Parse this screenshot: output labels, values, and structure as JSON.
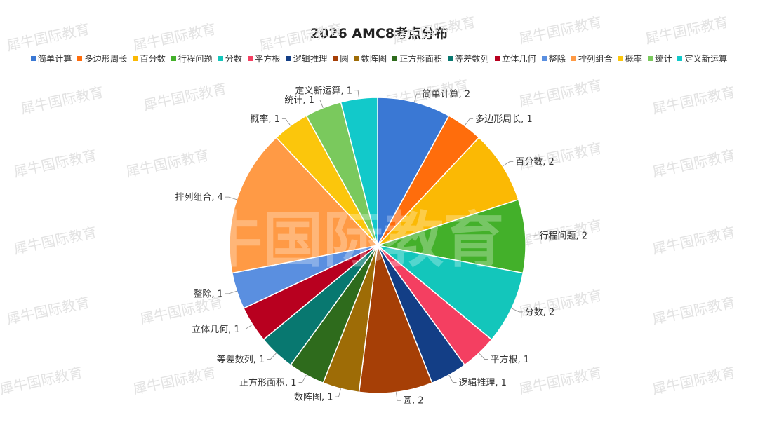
{
  "chart_data": {
    "type": "pie",
    "title": "2026 AMC8考点分布",
    "legend_position": "top",
    "slices": [
      {
        "label": "简单计算",
        "value": 2,
        "color": "#3a78d4"
      },
      {
        "label": "多边形周长",
        "value": 1,
        "color": "#ff6d0c"
      },
      {
        "label": "百分数",
        "value": 2,
        "color": "#fbb904"
      },
      {
        "label": "行程问题",
        "value": 2,
        "color": "#43b02a"
      },
      {
        "label": "分数",
        "value": 2,
        "color": "#13c6bb"
      },
      {
        "label": "平方根",
        "value": 1,
        "color": "#f43f61"
      },
      {
        "label": "逻辑推理",
        "value": 1,
        "color": "#133e86"
      },
      {
        "label": "圆",
        "value": 2,
        "color": "#a63f06"
      },
      {
        "label": "数阵图",
        "value": 1,
        "color": "#9e6c06"
      },
      {
        "label": "正方形面积",
        "value": 1,
        "color": "#2e6b1c"
      },
      {
        "label": "等差数列",
        "value": 1,
        "color": "#087870"
      },
      {
        "label": "立体几何",
        "value": 1,
        "color": "#b8001f"
      },
      {
        "label": "整除",
        "value": 1,
        "color": "#5a8fe0"
      },
      {
        "label": "排列组合",
        "value": 4,
        "color": "#ff9a45"
      },
      {
        "label": "概率",
        "value": 1,
        "color": "#fbc60c"
      },
      {
        "label": "统计",
        "value": 1,
        "color": "#7ac95d"
      },
      {
        "label": "定义新运算",
        "value": 1,
        "color": "#12c9ca"
      }
    ]
  },
  "watermark": {
    "text": "犀牛国际教育"
  }
}
